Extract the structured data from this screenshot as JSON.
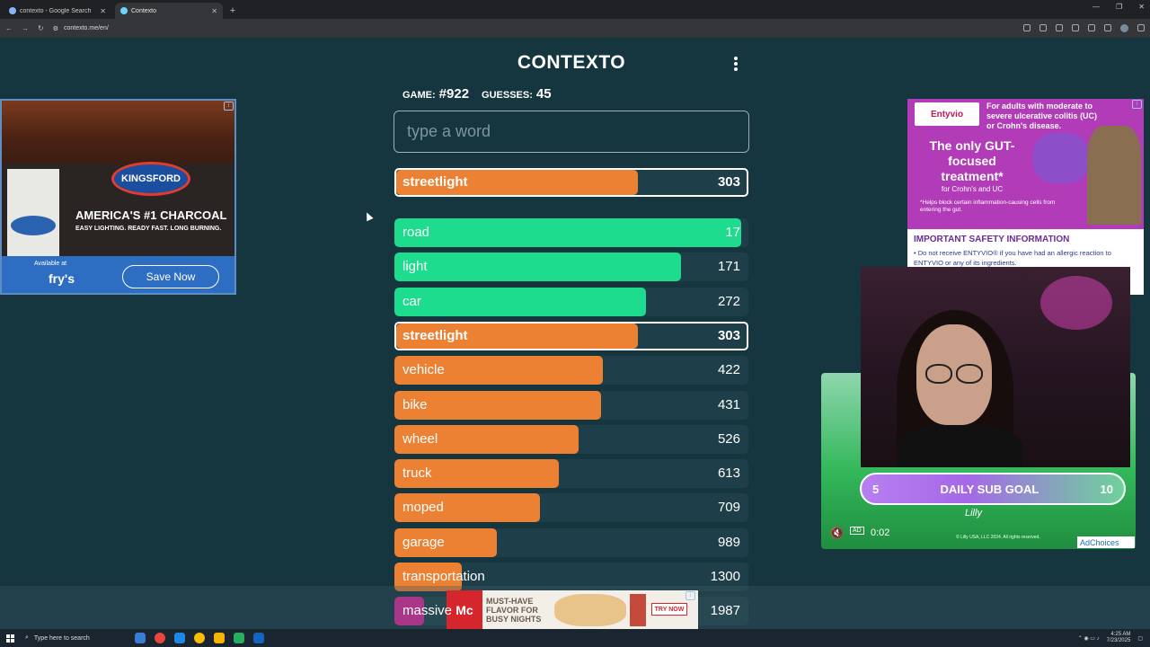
{
  "browser": {
    "tabs": [
      {
        "title": "contexto - Google Search",
        "active": false
      },
      {
        "title": "Contexto",
        "active": true
      }
    ],
    "url": "contexto.me/en/"
  },
  "game": {
    "title": "CONTEXTO",
    "game_label": "GAME:",
    "game_number": "#922",
    "guesses_label": "GUESSES:",
    "guesses_count": "45",
    "input_placeholder": "type a word",
    "last_guess": {
      "word": "streetlight",
      "rank": "303",
      "progress": 0.69,
      "color": "#ec8133"
    },
    "guesses": [
      {
        "word": "road",
        "rank": "17",
        "progress": 0.98,
        "color": "#1ddc8d"
      },
      {
        "word": "light",
        "rank": "171",
        "progress": 0.81,
        "color": "#1ddc8d"
      },
      {
        "word": "car",
        "rank": "272",
        "progress": 0.71,
        "color": "#1ddc8d"
      },
      {
        "word": "streetlight",
        "rank": "303",
        "progress": 0.69,
        "color": "#ec8133",
        "current": true
      },
      {
        "word": "vehicle",
        "rank": "422",
        "progress": 0.59,
        "color": "#ec8133"
      },
      {
        "word": "bike",
        "rank": "431",
        "progress": 0.585,
        "color": "#ec8133"
      },
      {
        "word": "wheel",
        "rank": "526",
        "progress": 0.52,
        "color": "#ec8133"
      },
      {
        "word": "truck",
        "rank": "613",
        "progress": 0.465,
        "color": "#ec8133"
      },
      {
        "word": "moped",
        "rank": "709",
        "progress": 0.41,
        "color": "#ec8133"
      },
      {
        "word": "garage",
        "rank": "989",
        "progress": 0.29,
        "color": "#ec8133"
      },
      {
        "word": "transportation",
        "rank": "1300",
        "progress": 0.19,
        "color": "#ec8133"
      },
      {
        "word": "massive",
        "rank": "1987",
        "progress": 0.085,
        "color": "#e3249b"
      }
    ]
  },
  "ad_left": {
    "brand": "KINGSFORD",
    "headline": "AMERICA'S #1 CHARCOAL",
    "tagline": "EASY LIGHTING. READY FAST. LONG BURNING.",
    "available": "Available at",
    "store": "fry's",
    "cta": "Save Now"
  },
  "ad_right": {
    "brand": "Entyvio",
    "line1": "For adults with moderate to",
    "line2": "severe ulcerative colitis (UC)",
    "line3": "or Crohn's disease.",
    "headline": "The only GUT-focused treatment*",
    "sub": "for Crohn's and UC",
    "fine": "*Helps block certain inflammation-causing cells from entering the gut.",
    "isi_title": "IMPORTANT SAFETY INFORMATION",
    "isi_text": "• Do not receive ENTYVIO® if you have had an allergic reaction to ENTYVIO or any of its ingredients."
  },
  "stream": {
    "goal_current": "5",
    "goal_label": "DAILY SUB GOAL",
    "goal_target": "10",
    "ad_badge": "AD",
    "time": "0:02",
    "sponsor": "Lilly",
    "copyright": "© Lilly USA, LLC 2024. All rights reserved.",
    "adchoices": "AdChoices"
  },
  "ad_bottom": {
    "brand": "Mc",
    "line1": "MUST-HAVE",
    "line2": "FLAVOR FOR",
    "line3": "BUSY NIGHTS",
    "cta": "TRY NOW"
  },
  "taskbar": {
    "search_placeholder": "Type here to search",
    "time": "4:25 AM",
    "date": "7/23/2025"
  }
}
